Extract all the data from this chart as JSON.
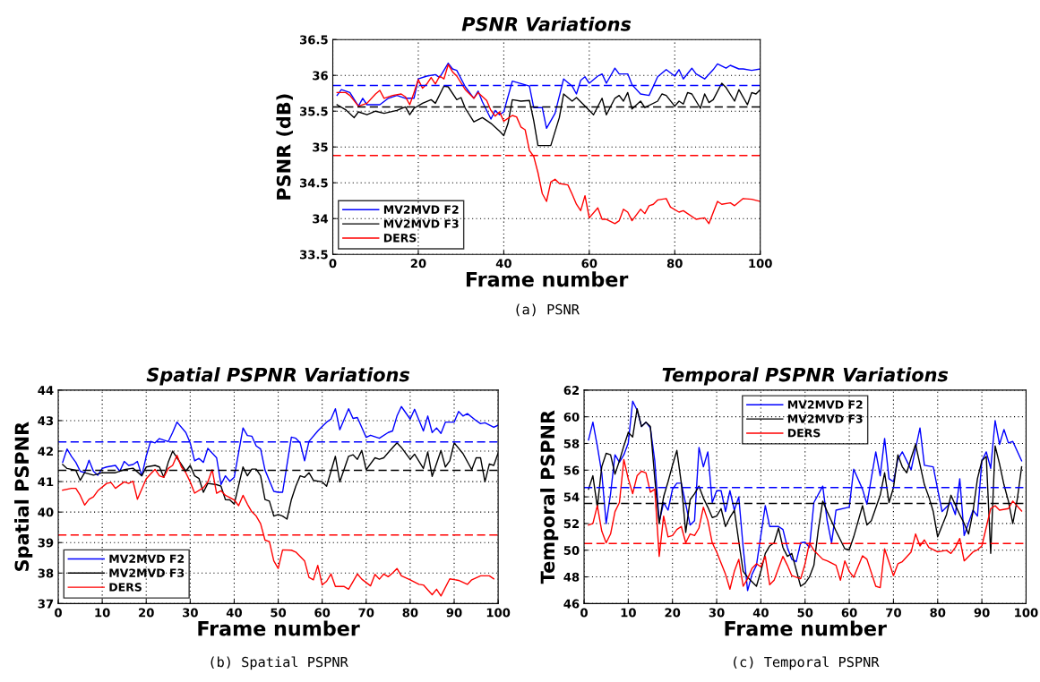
{
  "chart_data": [
    {
      "type": "line",
      "title": "PSNR Variations",
      "xlabel": "Frame number",
      "ylabel": "PSNR (dB)",
      "annotations": [
        "(a) PSNR"
      ],
      "xlim": [
        0,
        100
      ],
      "xticks": [
        0,
        20,
        40,
        60,
        80,
        100
      ],
      "ylim": [
        33.5,
        36.5
      ],
      "yticks": [
        33.5,
        34,
        34.5,
        35,
        35.5,
        36,
        36.5
      ],
      "grid": true,
      "legend": "bottom left",
      "line_style": "solid",
      "marker": "none",
      "series": [
        {
          "name": "MV2MVD F2",
          "color": "#0000ff",
          "x": [
            1,
            2,
            4,
            6,
            7,
            8,
            11,
            13,
            15,
            17,
            19,
            20,
            22,
            24,
            25,
            27,
            28,
            29,
            31,
            33,
            34,
            35,
            37,
            38,
            39,
            40,
            42,
            46,
            47,
            49,
            50,
            52,
            54,
            56,
            57,
            58,
            59,
            60,
            62,
            63,
            64,
            66,
            67,
            69,
            70,
            72,
            74,
            75,
            76,
            78,
            80,
            81,
            82,
            84,
            85,
            87,
            89,
            90,
            92,
            93,
            95,
            96,
            98,
            100
          ],
          "values": [
            35.72,
            35.8,
            35.76,
            35.57,
            35.68,
            35.59,
            35.59,
            35.68,
            35.72,
            35.68,
            35.68,
            35.95,
            35.99,
            36.01,
            35.97,
            36.17,
            36.09,
            36.07,
            35.84,
            35.68,
            35.78,
            35.63,
            35.39,
            35.51,
            35.45,
            35.49,
            35.92,
            35.85,
            35.55,
            35.55,
            35.26,
            35.47,
            35.95,
            35.85,
            35.74,
            35.93,
            35.98,
            35.89,
            35.99,
            36.02,
            35.89,
            36.1,
            36.02,
            36.02,
            35.87,
            35.74,
            35.72,
            35.85,
            35.98,
            36.08,
            35.99,
            36.08,
            35.95,
            36.1,
            36.02,
            35.95,
            36.08,
            36.16,
            36.1,
            36.14,
            36.09,
            36.09,
            36.07,
            36.09
          ]
        },
        {
          "name": "MV2MVD F3",
          "color": "#000000",
          "x": [
            1,
            3,
            5,
            6,
            8,
            10,
            12,
            15,
            17,
            18,
            19,
            21,
            23,
            24,
            26,
            27,
            29,
            30,
            31,
            33,
            35,
            37,
            39,
            40,
            41,
            42,
            44,
            46,
            47,
            48,
            49,
            51,
            53,
            54,
            56,
            57,
            59,
            61,
            63,
            64,
            66,
            67,
            68,
            69,
            70,
            72,
            73,
            76,
            77,
            78,
            80,
            81,
            82,
            83,
            84,
            86,
            87,
            88,
            89,
            91,
            92,
            94,
            95,
            97,
            98,
            99,
            100
          ],
          "values": [
            35.59,
            35.52,
            35.41,
            35.49,
            35.45,
            35.5,
            35.47,
            35.51,
            35.56,
            35.45,
            35.54,
            35.61,
            35.66,
            35.61,
            35.85,
            35.84,
            35.66,
            35.69,
            35.54,
            35.35,
            35.41,
            35.33,
            35.22,
            35.16,
            35.33,
            35.66,
            35.64,
            35.65,
            35.37,
            35.02,
            35.02,
            35.02,
            35.41,
            35.74,
            35.64,
            35.69,
            35.57,
            35.45,
            35.68,
            35.45,
            35.68,
            35.72,
            35.64,
            35.76,
            35.53,
            35.64,
            35.55,
            35.64,
            35.74,
            35.72,
            35.57,
            35.64,
            35.6,
            35.76,
            35.74,
            35.54,
            35.74,
            35.62,
            35.66,
            35.89,
            35.83,
            35.64,
            35.8,
            35.59,
            35.76,
            35.74,
            35.8
          ]
        },
        {
          "name": "DERS",
          "color": "#ff0000",
          "x": [
            1,
            3,
            4,
            6,
            8,
            10,
            11,
            12,
            14,
            16,
            17,
            18,
            19,
            20,
            21,
            22,
            23,
            24,
            25,
            26,
            27,
            28,
            29,
            31,
            33,
            34,
            36,
            37,
            38,
            39,
            40,
            42,
            43,
            44,
            45,
            46,
            47,
            48,
            49,
            50,
            51,
            52,
            53,
            55,
            56,
            57,
            58,
            59,
            60,
            62,
            63,
            64,
            66,
            67,
            68,
            69,
            70,
            72,
            73,
            74,
            75,
            76,
            78,
            79,
            81,
            82,
            83,
            85,
            87,
            88,
            90,
            91,
            93,
            94,
            96,
            98,
            100
          ],
          "values": [
            35.76,
            35.76,
            35.72,
            35.57,
            35.61,
            35.74,
            35.79,
            35.68,
            35.72,
            35.74,
            35.7,
            35.59,
            35.76,
            35.94,
            35.82,
            35.88,
            35.97,
            35.88,
            35.99,
            35.95,
            36.15,
            36.05,
            35.99,
            35.8,
            35.68,
            35.76,
            35.65,
            35.51,
            35.43,
            35.49,
            35.36,
            35.44,
            35.42,
            35.28,
            35.24,
            34.95,
            34.87,
            34.64,
            34.35,
            34.24,
            34.51,
            34.55,
            34.49,
            34.47,
            34.34,
            34.2,
            34.11,
            34.32,
            34.01,
            34.15,
            33.99,
            33.99,
            33.93,
            33.97,
            34.13,
            34.09,
            33.97,
            34.13,
            34.07,
            34.18,
            34.2,
            34.26,
            34.28,
            34.16,
            34.09,
            34.11,
            34.07,
            33.99,
            34.01,
            33.93,
            34.24,
            34.2,
            34.22,
            34.18,
            34.28,
            34.27,
            34.24
          ]
        }
      ],
      "ref_lines": [
        {
          "axis": "y",
          "value": 35.86,
          "color": "#0000ff",
          "line_style": "dashed"
        },
        {
          "axis": "y",
          "value": 35.56,
          "color": "#000000",
          "line_style": "dashed"
        },
        {
          "axis": "y",
          "value": 34.88,
          "color": "#ff0000",
          "line_style": "dashed"
        }
      ]
    },
    {
      "type": "line",
      "title": "Spatial PSPNR Variations",
      "xlabel": "Frame number",
      "ylabel": "Spatial PSPNR",
      "annotations": [
        "(b) Spatial PSPNR"
      ],
      "xlim": [
        0,
        100
      ],
      "xticks": [
        0,
        10,
        20,
        30,
        40,
        50,
        60,
        70,
        80,
        90,
        100
      ],
      "ylim": [
        37,
        44
      ],
      "yticks": [
        37,
        38,
        39,
        40,
        41,
        42,
        43,
        44
      ],
      "grid": true,
      "legend": "bottom left",
      "line_style": "solid",
      "marker": "none",
      "series": [
        {
          "name": "MV2MVD F2",
          "color": "#0000ff",
          "x": [
            1,
            2,
            3,
            4,
            5,
            6,
            7,
            8,
            9,
            10,
            11,
            13,
            14,
            15,
            16,
            17,
            18,
            19,
            20,
            21,
            22,
            23,
            25,
            26,
            27,
            29,
            30,
            31,
            32,
            33,
            34,
            36,
            37,
            38,
            39,
            40,
            42,
            43,
            44,
            45,
            46,
            47,
            49,
            50,
            51,
            53,
            54,
            55,
            56,
            57,
            59,
            60,
            61,
            62,
            63,
            64,
            66,
            67,
            68,
            70,
            71,
            73,
            75,
            76,
            77,
            78,
            80,
            81,
            83,
            84,
            85,
            86,
            87,
            88,
            90,
            91,
            92,
            93,
            95,
            96,
            97,
            99,
            100
          ],
          "values": [
            41.63,
            42.07,
            41.83,
            41.63,
            41.34,
            41.29,
            41.7,
            41.34,
            41.21,
            41.43,
            41.48,
            41.53,
            41.34,
            41.66,
            41.53,
            41.56,
            41.66,
            41.19,
            41.83,
            42.32,
            42.27,
            42.41,
            42.31,
            42.61,
            42.95,
            42.61,
            42.27,
            41.68,
            41.76,
            41.63,
            42.09,
            41.78,
            40.9,
            41.19,
            41.01,
            41.14,
            42.76,
            42.51,
            42.49,
            42.17,
            42.07,
            41.38,
            40.68,
            40.65,
            40.65,
            42.46,
            42.42,
            42.27,
            41.68,
            42.32,
            42.66,
            42.81,
            42.95,
            43.05,
            43.39,
            42.7,
            43.39,
            43.07,
            43.1,
            42.45,
            42.52,
            42.42,
            42.61,
            42.66,
            43.15,
            43.46,
            43.05,
            43.37,
            42.66,
            43.15,
            42.61,
            42.76,
            42.58,
            42.95,
            42.95,
            43.3,
            43.15,
            43.23,
            43.0,
            42.9,
            42.93,
            42.78,
            42.85
          ]
        },
        {
          "name": "MV2MVD F3",
          "color": "#000000",
          "x": [
            1,
            2,
            4,
            5,
            6,
            8,
            10,
            13,
            15,
            17,
            19,
            20,
            22,
            23,
            24,
            25,
            26,
            27,
            29,
            30,
            31,
            32,
            33,
            34,
            36,
            37,
            38,
            39,
            40,
            42,
            43,
            44,
            45,
            46,
            47,
            48,
            49,
            50,
            51,
            52,
            53,
            54,
            55,
            56,
            57,
            58,
            60,
            61,
            62,
            63,
            64,
            66,
            67,
            68,
            69,
            70,
            72,
            73,
            74,
            75,
            77,
            78,
            80,
            81,
            83,
            84,
            85,
            87,
            88,
            89,
            90,
            92,
            94,
            95,
            96,
            97,
            98,
            99,
            100
          ],
          "values": [
            41.56,
            41.43,
            41.37,
            41.04,
            41.29,
            41.21,
            41.29,
            41.29,
            41.39,
            41.44,
            41.19,
            41.48,
            41.53,
            41.48,
            41.14,
            41.63,
            42.0,
            41.78,
            41.34,
            41.53,
            41.19,
            41.1,
            40.65,
            40.94,
            40.9,
            40.85,
            40.41,
            40.4,
            40.26,
            41.48,
            41.19,
            41.41,
            41.41,
            41.19,
            40.41,
            40.36,
            39.87,
            39.92,
            39.87,
            39.77,
            40.41,
            40.85,
            41.19,
            41.14,
            41.29,
            41.04,
            40.99,
            40.85,
            41.34,
            41.83,
            40.99,
            41.83,
            41.88,
            41.73,
            42.02,
            41.39,
            41.78,
            41.73,
            41.78,
            41.95,
            42.27,
            42.12,
            41.73,
            41.9,
            41.43,
            41.97,
            41.17,
            42.02,
            41.48,
            41.68,
            42.27,
            41.92,
            41.39,
            41.78,
            41.78,
            40.99,
            41.58,
            41.53,
            41.94
          ]
        },
        {
          "name": "DERS",
          "color": "#ff0000",
          "x": [
            1,
            3,
            4,
            5,
            6,
            7,
            8,
            9,
            11,
            12,
            13,
            15,
            16,
            17,
            18,
            20,
            21,
            22,
            23,
            24,
            25,
            26,
            27,
            28,
            29,
            30,
            31,
            33,
            34,
            35,
            36,
            37,
            38,
            40,
            41,
            42,
            43,
            44,
            45,
            46,
            47,
            48,
            49,
            50,
            51,
            53,
            54,
            56,
            57,
            58,
            59,
            60,
            61,
            62,
            63,
            65,
            66,
            68,
            69,
            71,
            72,
            73,
            74,
            75,
            76,
            77,
            78,
            80,
            82,
            83,
            85,
            86,
            87,
            89,
            91,
            93,
            94,
            96,
            98,
            99
          ],
          "values": [
            40.72,
            40.78,
            40.78,
            40.55,
            40.23,
            40.42,
            40.5,
            40.7,
            40.94,
            40.97,
            40.78,
            40.99,
            40.94,
            41.01,
            40.42,
            41.09,
            41.25,
            41.4,
            41.19,
            41.14,
            41.43,
            41.53,
            41.86,
            41.48,
            41.29,
            40.99,
            40.62,
            40.8,
            40.99,
            41.39,
            40.62,
            40.7,
            40.55,
            40.4,
            40.21,
            40.55,
            40.26,
            40.01,
            39.87,
            39.62,
            39.08,
            39.03,
            38.4,
            38.15,
            38.76,
            38.75,
            38.69,
            38.4,
            37.86,
            37.78,
            38.25,
            37.61,
            37.73,
            37.97,
            37.56,
            37.56,
            37.47,
            37.97,
            37.8,
            37.58,
            37.96,
            37.8,
            37.97,
            37.88,
            38.0,
            38.15,
            37.91,
            37.78,
            37.63,
            37.61,
            37.29,
            37.47,
            37.25,
            37.81,
            37.76,
            37.63,
            37.78,
            37.91,
            37.91,
            37.81
          ]
        }
      ],
      "ref_lines": [
        {
          "axis": "y",
          "value": 42.3,
          "color": "#0000ff",
          "line_style": "dashed"
        },
        {
          "axis": "y",
          "value": 41.37,
          "color": "#000000",
          "line_style": "dashed"
        },
        {
          "axis": "y",
          "value": 39.25,
          "color": "#ff0000",
          "line_style": "dashed"
        }
      ]
    },
    {
      "type": "line",
      "title": "Temporal PSPNR Variations",
      "xlabel": "Frame number",
      "ylabel": "Temporal PSPNR",
      "annotations": [
        "(c) Temporal PSPNR"
      ],
      "xlim": [
        0,
        100
      ],
      "xticks": [
        0,
        10,
        20,
        30,
        40,
        50,
        60,
        70,
        80,
        90,
        100
      ],
      "ylim": [
        46,
        62
      ],
      "yticks": [
        46,
        48,
        50,
        52,
        54,
        56,
        58,
        60,
        62
      ],
      "grid": true,
      "legend": "top",
      "line_style": "solid",
      "marker": "none",
      "series": [
        {
          "name": "MV2MVD F2",
          "color": "#0000ff",
          "x": [
            1,
            2,
            3,
            4,
            5,
            6,
            7,
            8,
            9,
            10,
            11,
            12,
            13,
            14,
            15,
            16,
            17,
            18,
            19,
            20,
            21,
            22,
            24,
            25,
            26,
            27,
            28,
            29,
            30,
            31,
            32,
            33,
            34,
            35,
            36,
            37,
            38,
            39,
            41,
            42,
            44,
            45,
            46,
            47,
            48,
            49,
            50,
            51,
            52,
            54,
            55,
            56,
            57,
            60,
            61,
            63,
            64,
            66,
            67,
            68,
            69,
            70,
            71,
            72,
            74,
            75,
            76,
            77,
            79,
            81,
            83,
            84,
            85,
            86,
            88,
            89,
            90,
            91,
            92,
            93,
            94,
            95,
            96,
            97,
            99
          ],
          "values": [
            58.26,
            59.6,
            57.8,
            55.8,
            52.0,
            54.24,
            57.15,
            56.6,
            57.15,
            58.04,
            61.17,
            60.5,
            59.27,
            59.6,
            59.16,
            56.7,
            52.1,
            53.57,
            53.0,
            54.57,
            55.02,
            55.02,
            51.89,
            52.22,
            57.7,
            56.25,
            57.37,
            53.57,
            54.46,
            54.46,
            52.9,
            54.46,
            53.0,
            54.0,
            50.2,
            46.97,
            48.2,
            48.87,
            53.34,
            51.78,
            51.78,
            51.55,
            50.2,
            49.32,
            49.14,
            50.55,
            50.6,
            50.2,
            53.57,
            54.8,
            52.22,
            50.55,
            53.0,
            53.23,
            56.07,
            54.57,
            53.45,
            57.37,
            55.58,
            58.38,
            55.36,
            55.13,
            56.81,
            57.37,
            56.03,
            57.6,
            59.16,
            56.36,
            56.25,
            52.9,
            53.57,
            52.67,
            55.36,
            51.1,
            53.0,
            52.56,
            56.7,
            57.37,
            56.14,
            59.72,
            57.93,
            59.05,
            58.04,
            58.15,
            56.7
          ]
        },
        {
          "name": "MV2MVD F3",
          "color": "#000000",
          "x": [
            1,
            2,
            3,
            4,
            5,
            6,
            7,
            8,
            9,
            10,
            11,
            12,
            13,
            14,
            15,
            16,
            17,
            18,
            19,
            20,
            21,
            22,
            23,
            24,
            25,
            26,
            27,
            28,
            29,
            30,
            31,
            32,
            33,
            34,
            35,
            36,
            37,
            39,
            40,
            41,
            42,
            43,
            44,
            45,
            46,
            47,
            49,
            50,
            51,
            52,
            53,
            54,
            55,
            57,
            59,
            60,
            61,
            63,
            64,
            65,
            67,
            68,
            69,
            70,
            71,
            72,
            73,
            74,
            75,
            77,
            78,
            79,
            80,
            82,
            83,
            85,
            86,
            87,
            88,
            89,
            90,
            91,
            92,
            93,
            94,
            95,
            96,
            97,
            98,
            99
          ],
          "values": [
            54.57,
            55.58,
            53.23,
            56.25,
            57.26,
            57.15,
            55.7,
            56.7,
            57.82,
            58.82,
            58.49,
            60.6,
            59.27,
            59.6,
            59.27,
            55.36,
            52.0,
            54.01,
            55.13,
            56.36,
            57.48,
            55.02,
            51.33,
            53.79,
            54.24,
            54.8,
            53.9,
            53.23,
            52.45,
            52.56,
            53.12,
            51.78,
            52.45,
            53.0,
            50.66,
            48.42,
            47.97,
            47.3,
            48.42,
            49.76,
            50.32,
            50.55,
            51.66,
            50.2,
            49.54,
            49.76,
            47.3,
            47.53,
            48.0,
            48.87,
            51.55,
            53.68,
            52.9,
            51.44,
            50.1,
            50.03,
            51.0,
            53.34,
            51.89,
            52.22,
            54.12,
            55.8,
            53.57,
            54.68,
            57.15,
            56.25,
            55.8,
            56.92,
            57.93,
            54.91,
            54.0,
            52.9,
            51.0,
            52.67,
            54.12,
            52.67,
            52.0,
            51.21,
            52.9,
            55.36,
            56.7,
            57.03,
            49.76,
            57.82,
            56.47,
            54.91,
            53.68,
            52.0,
            53.79,
            56.25
          ]
        },
        {
          "name": "DERS",
          "color": "#ff0000",
          "x": [
            1,
            2,
            3,
            4,
            5,
            6,
            7,
            8,
            9,
            10,
            11,
            12,
            13,
            14,
            15,
            16,
            17,
            18,
            19,
            20,
            21,
            22,
            23,
            24,
            25,
            26,
            27,
            28,
            29,
            30,
            32,
            33,
            34,
            35,
            36,
            37,
            38,
            39,
            40,
            41,
            42,
            43,
            45,
            46,
            47,
            49,
            50,
            51,
            52,
            54,
            55,
            57,
            58,
            59,
            60,
            61,
            63,
            64,
            66,
            67,
            68,
            70,
            71,
            72,
            74,
            75,
            76,
            77,
            78,
            80,
            82,
            83,
            84,
            85,
            86,
            88,
            89,
            90,
            92,
            93,
            94,
            96,
            97,
            99
          ],
          "values": [
            51.89,
            52.0,
            53.34,
            51.44,
            50.55,
            51.22,
            52.89,
            53.57,
            56.8,
            55.36,
            54.24,
            55.58,
            55.92,
            55.8,
            54.35,
            54.57,
            49.54,
            52.56,
            51.0,
            51.1,
            51.55,
            51.78,
            50.55,
            51.22,
            51.1,
            51.66,
            53.23,
            52.22,
            50.55,
            49.87,
            48.2,
            47.08,
            48.42,
            49.32,
            47.3,
            47.86,
            48.64,
            48.98,
            48.76,
            49.54,
            47.41,
            47.75,
            49.54,
            48.87,
            48.09,
            47.86,
            48.98,
            50.55,
            49.99,
            49.32,
            49.2,
            48.87,
            47.75,
            49.2,
            48.42,
            47.97,
            49.58,
            49.32,
            47.3,
            47.19,
            50.1,
            48.09,
            48.98,
            49.14,
            49.87,
            51.22,
            50.32,
            50.77,
            50.21,
            49.87,
            49.99,
            49.76,
            50.21,
            50.88,
            49.2,
            49.87,
            50.03,
            50.32,
            53.12,
            53.34,
            53.0,
            53.12,
            53.68,
            52.94
          ]
        }
      ],
      "ref_lines": [
        {
          "axis": "y",
          "value": 54.7,
          "color": "#0000ff",
          "line_style": "dashed"
        },
        {
          "axis": "y",
          "value": 53.5,
          "color": "#000000",
          "line_style": "dashed"
        },
        {
          "axis": "y",
          "value": 50.5,
          "color": "#ff0000",
          "line_style": "dashed"
        }
      ]
    }
  ]
}
